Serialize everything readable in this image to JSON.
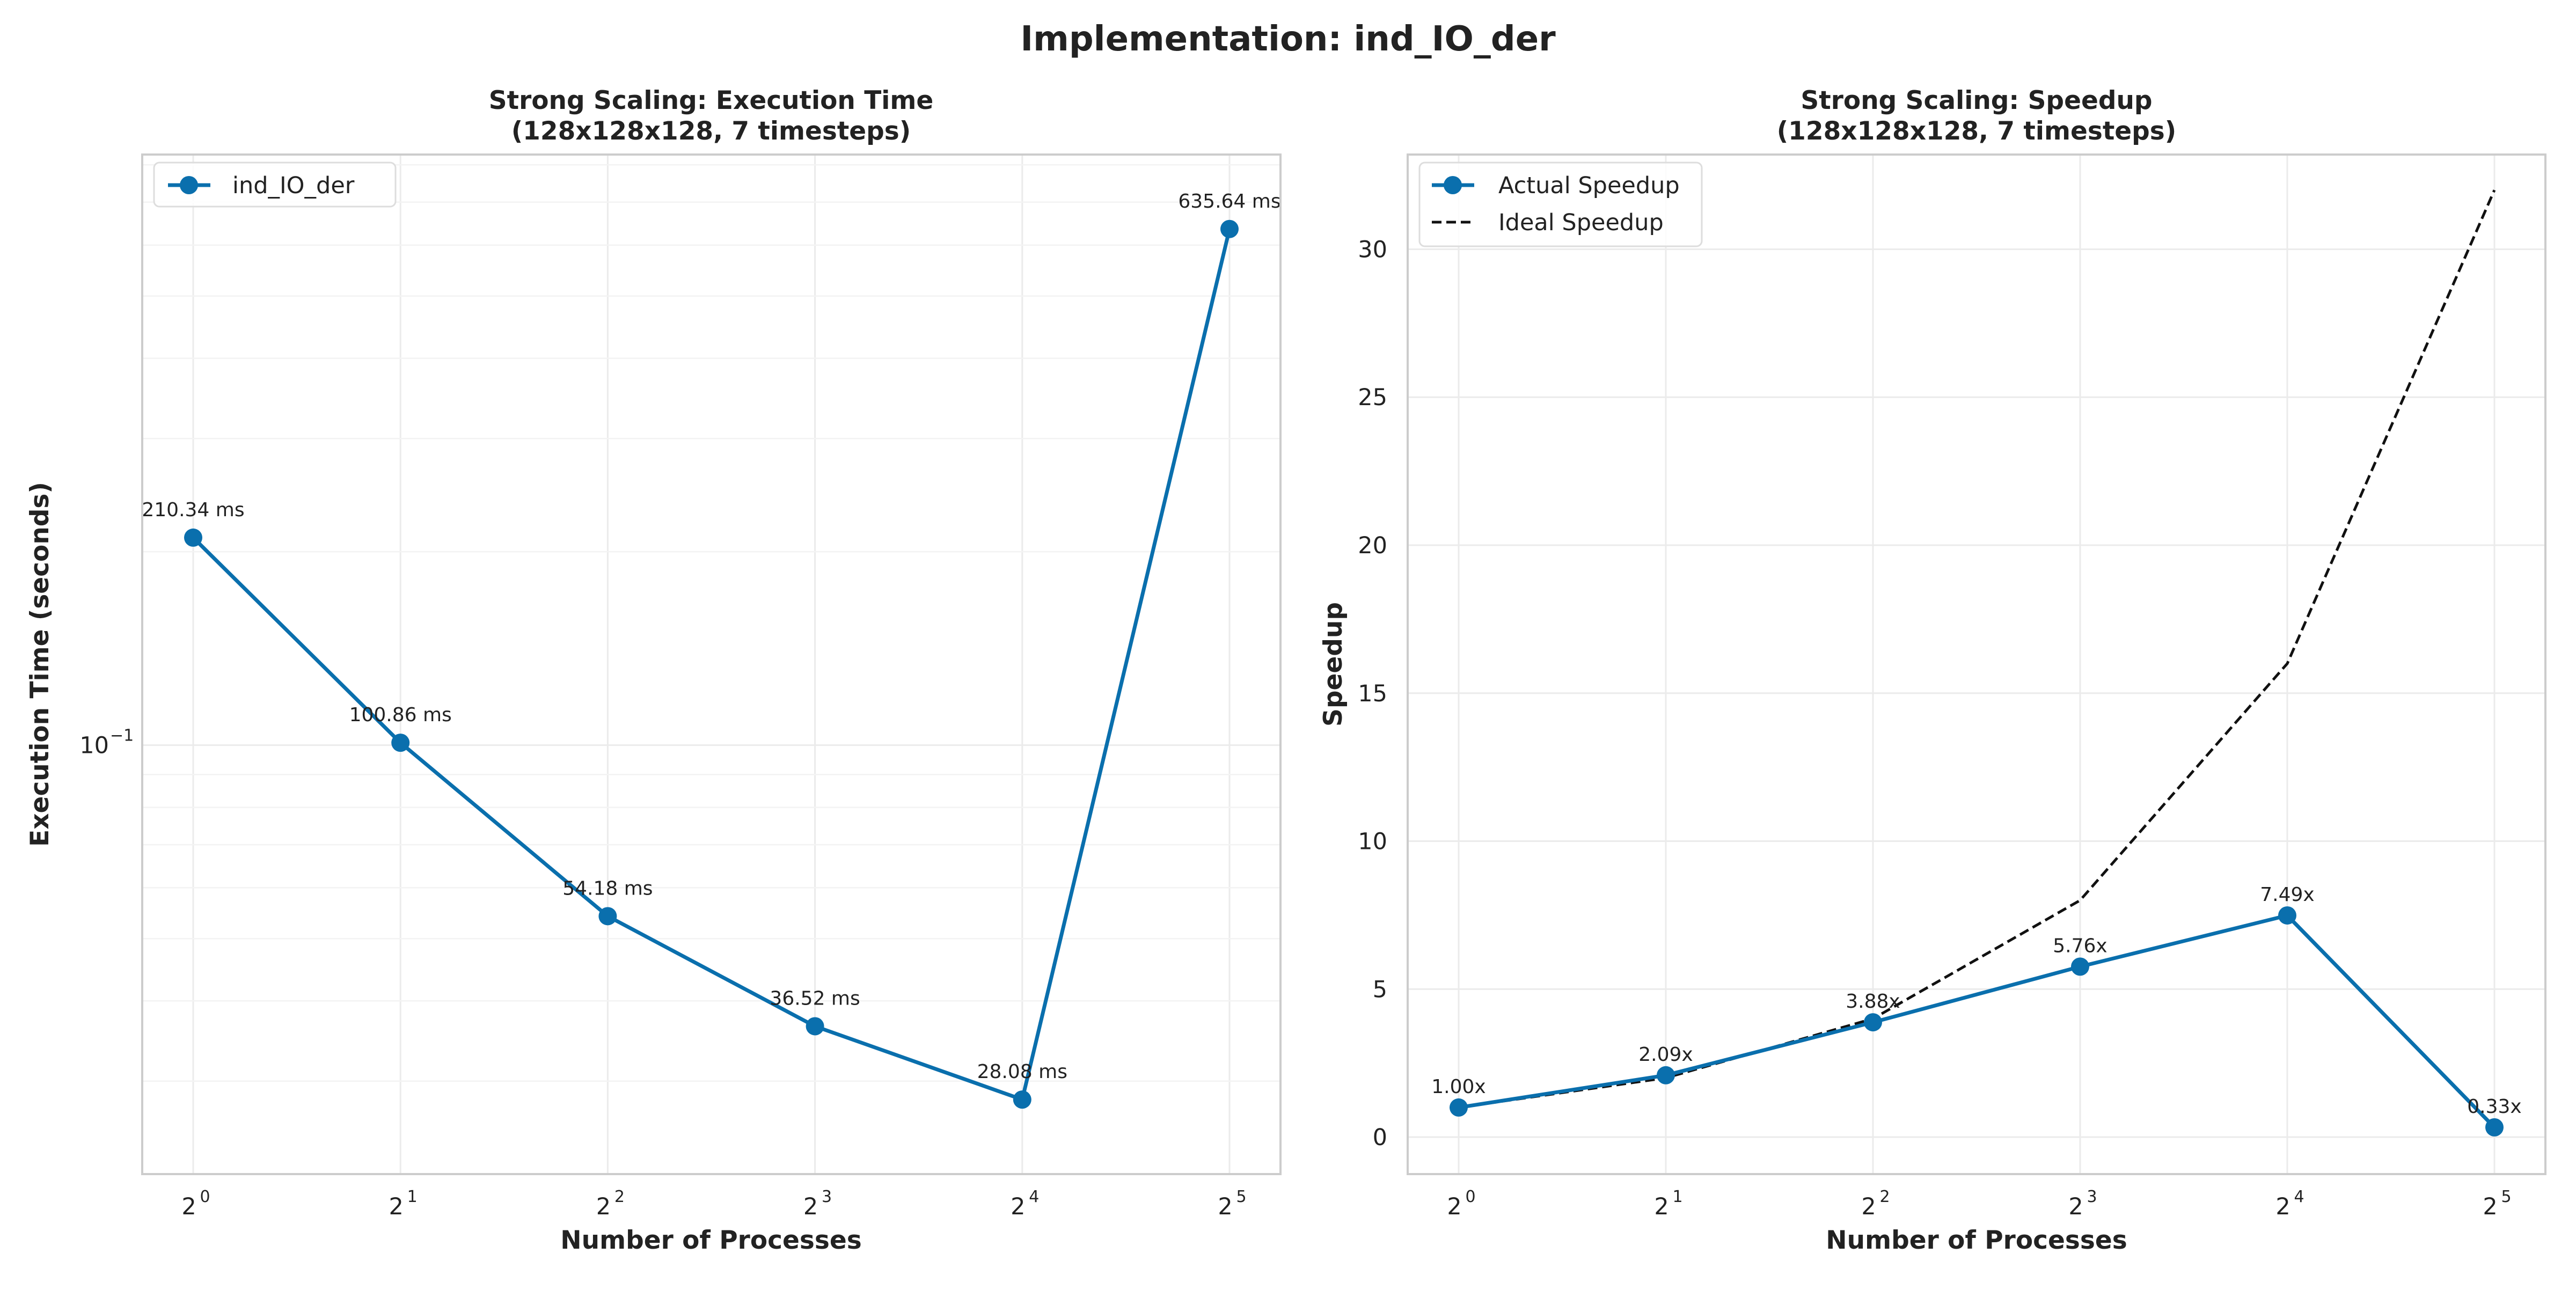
{
  "figure": {
    "suptitle": "Implementation: ind_IO_der"
  },
  "colors": {
    "actual": "#0a6fad",
    "ideal": "#111111",
    "grid": "#ebebeb",
    "frame": "#cccccc"
  },
  "chart_data": [
    {
      "type": "line",
      "title_line1": "Strong Scaling: Execution Time",
      "title_line2": "(128x128x128, 7 timesteps)",
      "xlabel": "Number of Processes",
      "ylabel": "Execution Time (seconds)",
      "x_scale": "log2",
      "y_scale": "log10",
      "x": [
        1,
        2,
        4,
        8,
        16,
        32
      ],
      "x_tick_base": "2",
      "x_tick_exponents": [
        "0",
        "1",
        "2",
        "3",
        "4",
        "5"
      ],
      "y_ticks": [
        {
          "base": "10",
          "exp": "−1",
          "value": 0.1
        }
      ],
      "ylim": [
        0.0215,
        0.83
      ],
      "grid": true,
      "legend_position": "top-left",
      "series": [
        {
          "name": "ind_IO_der",
          "values": [
            0.21034,
            0.10086,
            0.05418,
            0.03652,
            0.02808,
            0.63564
          ],
          "labels": [
            "210.34 ms",
            "100.86 ms",
            "54.18 ms",
            "36.52 ms",
            "28.08 ms",
            "635.64 ms"
          ]
        }
      ]
    },
    {
      "type": "line",
      "title_line1": "Strong Scaling: Speedup",
      "title_line2": "(128x128x128, 7 timesteps)",
      "xlabel": "Number of Processes",
      "ylabel": "Speedup",
      "x_scale": "log2",
      "y_scale": "linear",
      "x": [
        1,
        2,
        4,
        8,
        16,
        32
      ],
      "x_tick_base": "2",
      "x_tick_exponents": [
        "0",
        "1",
        "2",
        "3",
        "4",
        "5"
      ],
      "y_ticks": [
        "0",
        "5",
        "10",
        "15",
        "20",
        "25",
        "30"
      ],
      "ylim": [
        -1.25,
        33.2
      ],
      "grid": true,
      "legend_position": "top-left",
      "series": [
        {
          "name": "Actual Speedup",
          "values": [
            1.0,
            2.09,
            3.88,
            5.76,
            7.49,
            0.33
          ],
          "labels": [
            "1.00x",
            "2.09x",
            "3.88x",
            "5.76x",
            "7.49x",
            "0.33x"
          ]
        },
        {
          "name": "Ideal Speedup",
          "values": [
            1,
            2,
            4,
            8,
            16,
            32
          ]
        }
      ]
    }
  ]
}
